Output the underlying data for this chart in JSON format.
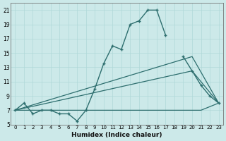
{
  "title": "",
  "xlabel": "Humidex (Indice chaleur)",
  "ylabel": "",
  "background_color": "#cce9e9",
  "line_color": "#2d6e6e",
  "xlim": [
    -0.5,
    23.5
  ],
  "ylim": [
    5,
    22
  ],
  "yticks": [
    5,
    7,
    9,
    11,
    13,
    15,
    17,
    19,
    21
  ],
  "xticks": [
    0,
    1,
    2,
    3,
    4,
    5,
    6,
    7,
    8,
    9,
    10,
    11,
    12,
    13,
    14,
    15,
    16,
    17,
    18,
    19,
    20,
    21,
    22,
    23
  ],
  "curve1_x": [
    0,
    1,
    2,
    3,
    4,
    5,
    6,
    7,
    8,
    9,
    10,
    11,
    12,
    13,
    14,
    15,
    16,
    17,
    19,
    20,
    21,
    22,
    23
  ],
  "curve1_y": [
    7,
    8,
    6.5,
    7,
    7,
    6.5,
    6.5,
    5.5,
    7,
    10,
    13.5,
    16,
    15.5,
    19,
    19.5,
    21,
    21,
    17.5,
    14.5,
    12.5,
    10.5,
    9,
    8
  ],
  "curve2_x": [
    0,
    1,
    2,
    3,
    4,
    5,
    6,
    7,
    8,
    9,
    10,
    11,
    12,
    13,
    14,
    15,
    16,
    17,
    18,
    19,
    20,
    21,
    22,
    23
  ],
  "curve2_y": [
    7,
    7,
    7,
    7,
    7,
    7,
    7,
    7,
    7,
    7,
    7,
    7,
    7,
    7,
    7,
    7,
    7,
    7,
    7,
    7,
    7,
    7,
    7.5,
    8
  ],
  "curve3_x": [
    0,
    20,
    23
  ],
  "curve3_y": [
    7,
    12.5,
    8
  ],
  "curve4_x": [
    0,
    20,
    23
  ],
  "curve4_y": [
    7,
    14.5,
    8
  ]
}
